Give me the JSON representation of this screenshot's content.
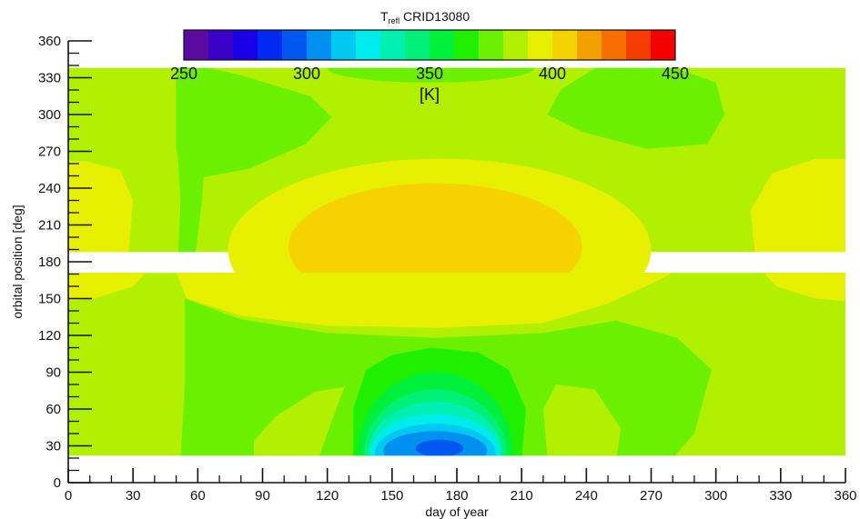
{
  "chart_data": {
    "type": "heatmap",
    "title": "T",
    "title_subscript": "refl",
    "title_suffix": " CRID13080",
    "xlabel": "day of year",
    "ylabel": "orbital position [deg]",
    "xlim": [
      0,
      360
    ],
    "ylim": [
      0,
      360
    ],
    "xticks": [
      0,
      30,
      60,
      90,
      120,
      150,
      180,
      210,
      240,
      270,
      300,
      330,
      360
    ],
    "yticks": [
      0,
      30,
      60,
      90,
      120,
      150,
      180,
      210,
      240,
      270,
      300,
      330,
      360
    ],
    "grid": false,
    "data_y_ranges": [
      [
        22,
        190
      ],
      [
        169,
        338
      ]
    ],
    "colorbar": {
      "label": "[K]",
      "range": [
        250,
        450
      ],
      "tick_values": [
        250,
        300,
        350,
        400,
        450
      ],
      "tick_labels": [
        "250",
        "300",
        "350",
        "400",
        "450"
      ],
      "colors": [
        "#5a0aa0",
        "#3a00c8",
        "#1a00e6",
        "#0028f0",
        "#0058f0",
        "#0090f0",
        "#00c8f0",
        "#00ecec",
        "#00f0b4",
        "#00f078",
        "#00f03c",
        "#1ef000",
        "#6af000",
        "#b0f000",
        "#e6f000",
        "#f5d200",
        "#f5a000",
        "#f56e00",
        "#f53c00",
        "#f50000"
      ]
    },
    "regions": [
      {
        "name": "upper-band-base",
        "value": 385
      },
      {
        "name": "upper-left-warm",
        "value": 392
      },
      {
        "name": "upper-right-warm",
        "value": 392
      },
      {
        "name": "upper-center-warm",
        "value": 392
      },
      {
        "name": "upper-center-core",
        "value": 400
      },
      {
        "name": "upper-left-cool-strip",
        "value": 375
      },
      {
        "name": "upper-left-cool-lobe",
        "value": 375
      },
      {
        "name": "upper-center-cool-lobe",
        "value": 375
      },
      {
        "name": "upper-right-cool-lobe",
        "value": 375
      },
      {
        "name": "lower-band-base",
        "value": 385
      },
      {
        "name": "lower-left-warm",
        "value": 392
      },
      {
        "name": "lower-right-warm",
        "value": 392
      },
      {
        "name": "lower-center-warm",
        "value": 392
      },
      {
        "name": "lower-main-cool",
        "value": 375
      },
      {
        "name": "lower-left-pocket",
        "value": 385
      },
      {
        "name": "lower-right-pocket",
        "value": 385
      },
      {
        "name": "cold-spot-365",
        "value": 365
      },
      {
        "name": "cold-spot-355",
        "value": 355
      },
      {
        "name": "cold-spot-345",
        "value": 345
      },
      {
        "name": "cold-spot-335",
        "value": 335
      },
      {
        "name": "cold-spot-325",
        "value": 325
      },
      {
        "name": "cold-spot-315",
        "value": 315
      },
      {
        "name": "cold-spot-305",
        "value": 305
      },
      {
        "name": "cold-spot-core",
        "value": 295
      }
    ]
  }
}
